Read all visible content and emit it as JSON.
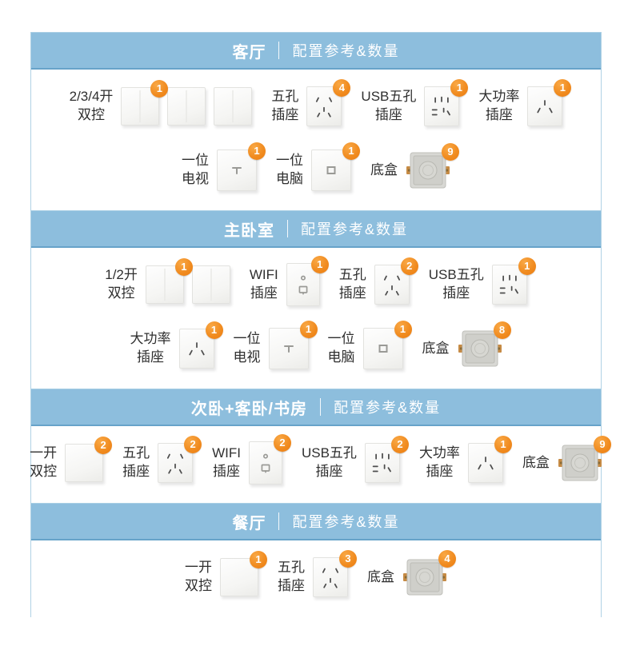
{
  "colors": {
    "header_bg": "#8dbedd",
    "header_border_bottom": "#67a3c9",
    "panel_border": "#b0d2e5",
    "badge_orange": "#f08a1e",
    "label_text": "#2f2f2f",
    "header_text": "#ffffff"
  },
  "sections": [
    {
      "title": "客厅",
      "subtitle": "配置参考&数量",
      "rows": [
        [
          {
            "label": [
              "2/3/4开",
              "双控"
            ],
            "icon": "switch2",
            "icon_name": "rocker-switch-icon",
            "count": 3,
            "badge": "1"
          },
          {
            "label": [
              "五孔",
              "插座"
            ],
            "icon": "socket5",
            "icon_name": "five-hole-socket-icon",
            "count": 1,
            "badge": "4"
          },
          {
            "label": [
              "USB五孔",
              "插座"
            ],
            "icon": "usb5",
            "icon_name": "usb-five-hole-socket-icon",
            "count": 1,
            "badge": "1"
          },
          {
            "label": [
              "大功率",
              "插座"
            ],
            "icon": "power3",
            "icon_name": "high-power-socket-icon",
            "count": 1,
            "badge": "1"
          }
        ],
        [
          {
            "label": [
              "一位",
              "电视"
            ],
            "icon": "tv",
            "icon_name": "tv-socket-icon",
            "count": 1,
            "badge": "1"
          },
          {
            "label": [
              "一位",
              "电脑"
            ],
            "icon": "pc",
            "icon_name": "pc-socket-icon",
            "count": 1,
            "badge": "1"
          },
          {
            "label": [
              "底盒"
            ],
            "icon": "backbox",
            "icon_name": "mounting-box-icon",
            "count": 1,
            "badge": "9"
          }
        ]
      ]
    },
    {
      "title": "主卧室",
      "subtitle": "配置参考&数量",
      "rows": [
        [
          {
            "label": [
              "1/2开",
              "双控"
            ],
            "icon": "switch2",
            "icon_name": "rocker-switch-icon",
            "count": 2,
            "badge": "1"
          },
          {
            "label": [
              "WIFI",
              "插座"
            ],
            "icon": "wifi",
            "icon_name": "wifi-socket-icon",
            "count": 1,
            "badge": "1"
          },
          {
            "label": [
              "五孔",
              "插座"
            ],
            "icon": "socket5",
            "icon_name": "five-hole-socket-icon",
            "count": 1,
            "badge": "2"
          },
          {
            "label": [
              "USB五孔",
              "插座"
            ],
            "icon": "usb5",
            "icon_name": "usb-five-hole-socket-icon",
            "count": 1,
            "badge": "1"
          }
        ],
        [
          {
            "label": [
              "大功率",
              "插座"
            ],
            "icon": "power3",
            "icon_name": "high-power-socket-icon",
            "count": 1,
            "badge": "1"
          },
          {
            "label": [
              "一位",
              "电视"
            ],
            "icon": "tv",
            "icon_name": "tv-socket-icon",
            "count": 1,
            "badge": "1"
          },
          {
            "label": [
              "一位",
              "电脑"
            ],
            "icon": "pc",
            "icon_name": "pc-socket-icon",
            "count": 1,
            "badge": "1"
          },
          {
            "label": [
              "底盒"
            ],
            "icon": "backbox",
            "icon_name": "mounting-box-icon",
            "count": 1,
            "badge": "8"
          }
        ]
      ]
    },
    {
      "title": "次卧+客卧/书房",
      "subtitle": "配置参考&数量",
      "rows": [
        [
          {
            "label": [
              "一开",
              "双控"
            ],
            "icon": "switch1",
            "icon_name": "rocker-switch-icon",
            "count": 1,
            "badge": "2"
          },
          {
            "label": [
              "五孔",
              "插座"
            ],
            "icon": "socket5",
            "icon_name": "five-hole-socket-icon",
            "count": 1,
            "badge": "2"
          },
          {
            "label": [
              "WIFI",
              "插座"
            ],
            "icon": "wifi",
            "icon_name": "wifi-socket-icon",
            "count": 1,
            "badge": "2"
          },
          {
            "label": [
              "USB五孔",
              "插座"
            ],
            "icon": "usb5",
            "icon_name": "usb-five-hole-socket-icon",
            "count": 1,
            "badge": "2"
          },
          {
            "label": [
              "大功率",
              "插座"
            ],
            "icon": "power3",
            "icon_name": "high-power-socket-icon",
            "count": 1,
            "badge": "1"
          },
          {
            "label": [
              "底盒"
            ],
            "icon": "backbox",
            "icon_name": "mounting-box-icon",
            "count": 1,
            "badge": "9"
          }
        ]
      ]
    },
    {
      "title": "餐厅",
      "subtitle": "配置参考&数量",
      "rows": [
        [
          {
            "label": [
              "一开",
              "双控"
            ],
            "icon": "switch1",
            "icon_name": "rocker-switch-icon",
            "count": 1,
            "badge": "1"
          },
          {
            "label": [
              "五孔",
              "插座"
            ],
            "icon": "socket5",
            "icon_name": "five-hole-socket-icon",
            "count": 1,
            "badge": "3"
          },
          {
            "label": [
              "底盒"
            ],
            "icon": "backbox",
            "icon_name": "mounting-box-icon",
            "count": 1,
            "badge": "4"
          }
        ]
      ]
    }
  ]
}
